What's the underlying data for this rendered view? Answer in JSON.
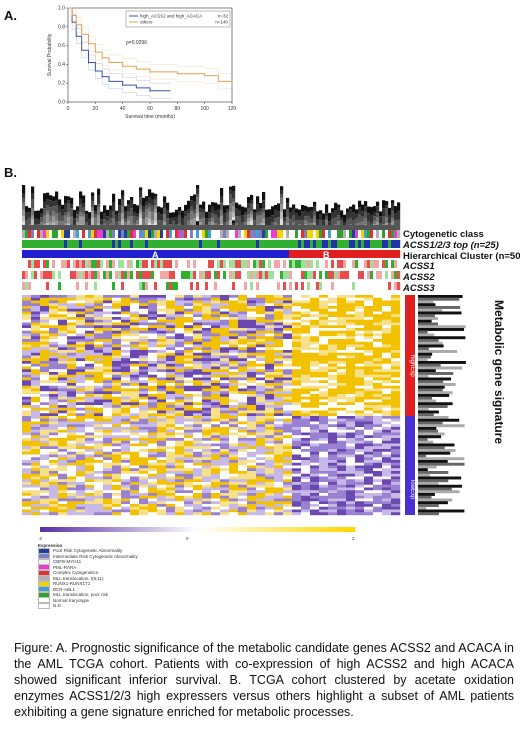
{
  "panel_a": {
    "label": "A.",
    "ylabel": "Survival Probability",
    "xlabel": "Survival time (months)",
    "legend": [
      {
        "name": "high_ACSS2 and high_ACACA",
        "n": "n=32",
        "color": "#3b4fb0"
      },
      {
        "name": "others",
        "n": "n=140",
        "color": "#e0a050"
      }
    ],
    "pvalue": "p=0.0296"
  },
  "panel_b": {
    "label": "B.",
    "row_labels": [
      {
        "text": "Cytogenetic class",
        "italic": false
      },
      {
        "text": "ACSS1/2/3 top (n=25)",
        "italic": true
      },
      {
        "text": "Hierarchical Cluster (n=50)",
        "italic": false
      },
      {
        "text": "ACSS1",
        "italic": true
      },
      {
        "text": "ACSS2",
        "italic": true
      },
      {
        "text": "ACSS3",
        "italic": true
      }
    ],
    "cluster_a": "A",
    "cluster_b": "B",
    "side_labels": [
      "highExp",
      "lowExp"
    ],
    "signature_label": "Metabolic gene signature",
    "scale_ticks": [
      "-2",
      "0",
      "2"
    ],
    "legend_title": "Expression",
    "legend_items": [
      {
        "label": "Poor Risk Cytogenetic Abnormality",
        "color": "#1f3f9a"
      },
      {
        "label": "Intermediate Risk Cytogenetic Abnormality",
        "color": "#7b7fc0"
      },
      {
        "label": "CBFB-MYH11",
        "color": "#f0f0f0"
      },
      {
        "label": "PML-RARA",
        "color": "#e83fd0"
      },
      {
        "label": "Complex Cytogenetics",
        "color": "#e03030"
      },
      {
        "label": "MLL translocation, t(9;11)",
        "color": "#b0b0b0"
      },
      {
        "label": "RUNX1-RUNX1T1",
        "color": "#f2d400"
      },
      {
        "label": "BCR-ABL1",
        "color": "#40a0d0"
      },
      {
        "label": "MLL translocation, poor risk",
        "color": "#30a030"
      },
      {
        "label": "Normal Karyotype",
        "color": "#ffffff"
      },
      {
        "label": "N.D.",
        "color": "#ffffff"
      }
    ]
  },
  "caption": "Figure: A. Prognostic significance of the metabolic candidate genes ACSS2 and ACACA in the AML TCGA cohort. Patients with co-expression of high ACSS2 and high ACACA showed significant inferior survival. B. TCGA cohort clustered by acetate oxidation enzymes ACSS1/2/3 high expressers versus others highlight a subset of AML patients exhibiting a gene signature enriched for metabolic processes.",
  "chart_data": {
    "type": "line",
    "title": "",
    "xlabel": "Survival time (months)",
    "ylabel": "Survival Probability",
    "xlim": [
      0,
      120
    ],
    "ylim": [
      0,
      1
    ],
    "x_ticks": [
      0,
      20,
      40,
      60,
      80,
      100,
      120
    ],
    "y_ticks": [
      0.0,
      0.2,
      0.4,
      0.6,
      0.8,
      1.0
    ],
    "series": [
      {
        "name": "high_ACSS2 and high_ACACA",
        "x": [
          0,
          3,
          6,
          10,
          15,
          20,
          25,
          30,
          40,
          50,
          60,
          75
        ],
        "y": [
          1.0,
          0.85,
          0.7,
          0.55,
          0.42,
          0.33,
          0.27,
          0.22,
          0.18,
          0.15,
          0.12,
          0.12
        ]
      },
      {
        "name": "others",
        "x": [
          0,
          3,
          6,
          10,
          15,
          20,
          25,
          30,
          40,
          50,
          60,
          80,
          100,
          110,
          120
        ],
        "y": [
          1.0,
          0.92,
          0.82,
          0.72,
          0.62,
          0.53,
          0.47,
          0.42,
          0.38,
          0.35,
          0.32,
          0.3,
          0.28,
          0.22,
          0.22
        ]
      }
    ],
    "grid": false,
    "legend_position": "top-right"
  }
}
